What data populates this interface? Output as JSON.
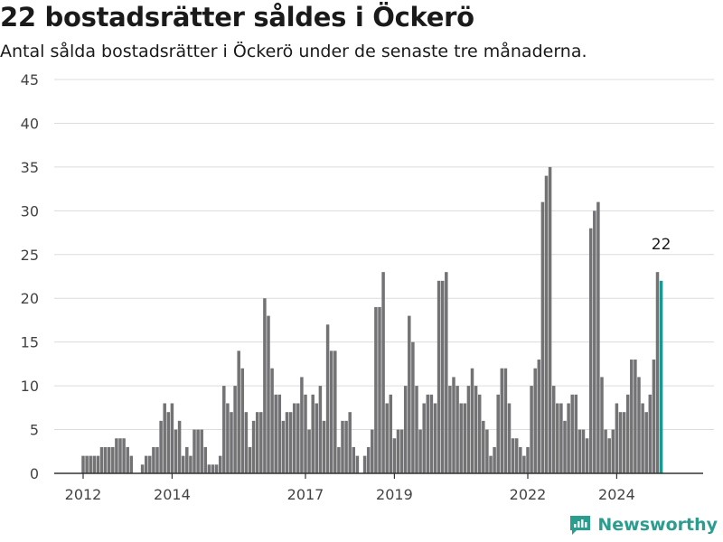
{
  "header": {
    "title": "22 bostadsrätter såldes i Öckerö",
    "subtitle": "Antal sålda bostadsrätter i Öckerö under de senaste tre månaderna."
  },
  "brand": {
    "name": "Newsworthy",
    "icon": "newsworthy-logo-icon",
    "color": "#2a9d8f"
  },
  "chart_data": {
    "type": "bar",
    "ylim": [
      0,
      45
    ],
    "yticks": [
      0,
      5,
      10,
      15,
      20,
      25,
      30,
      35,
      40,
      45
    ],
    "xticks": [
      {
        "label": "2012",
        "index": 0
      },
      {
        "label": "2014",
        "index": 24
      },
      {
        "label": "2017",
        "index": 60
      },
      {
        "label": "2019",
        "index": 84
      },
      {
        "label": "2022",
        "index": 120
      },
      {
        "label": "2024",
        "index": 144
      }
    ],
    "bar_color": "#737275",
    "highlight_color": "#199991",
    "highlight_label": "22",
    "values": [
      2,
      2,
      2,
      2,
      2,
      3,
      3,
      3,
      3,
      4,
      4,
      4,
      3,
      2,
      0,
      0,
      1,
      2,
      2,
      3,
      3,
      6,
      8,
      7,
      8,
      5,
      6,
      2,
      3,
      2,
      5,
      5,
      5,
      3,
      1,
      1,
      1,
      2,
      10,
      8,
      7,
      10,
      14,
      12,
      7,
      3,
      6,
      7,
      7,
      20,
      18,
      12,
      9,
      9,
      6,
      7,
      7,
      8,
      8,
      11,
      9,
      5,
      9,
      8,
      10,
      6,
      17,
      14,
      14,
      3,
      6,
      6,
      7,
      3,
      2,
      0,
      2,
      3,
      5,
      19,
      19,
      23,
      8,
      9,
      4,
      5,
      5,
      10,
      18,
      15,
      10,
      5,
      8,
      9,
      9,
      8,
      22,
      22,
      23,
      10,
      11,
      10,
      8,
      8,
      10,
      12,
      10,
      9,
      6,
      5,
      2,
      3,
      9,
      12,
      12,
      8,
      4,
      4,
      3,
      2,
      3,
      10,
      12,
      13,
      31,
      34,
      35,
      10,
      8,
      8,
      6,
      8,
      9,
      9,
      5,
      5,
      4,
      28,
      30,
      31,
      11,
      5,
      4,
      5,
      8,
      7,
      7,
      9,
      13,
      13,
      11,
      8,
      7,
      9,
      13,
      23,
      22
    ]
  }
}
